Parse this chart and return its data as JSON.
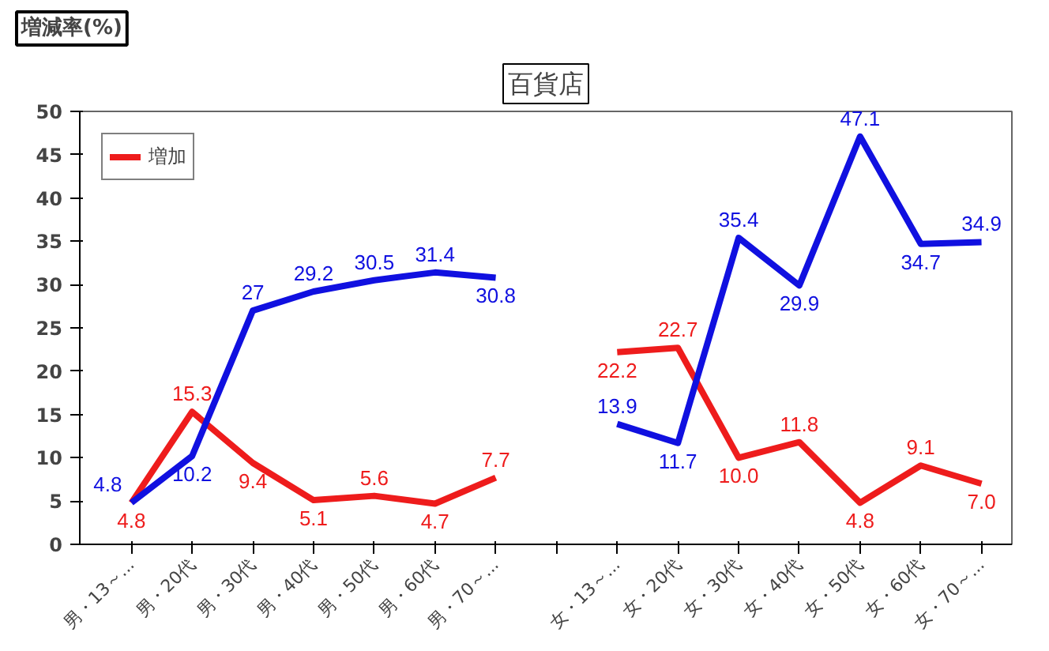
{
  "chart_data": {
    "type": "line",
    "title": "百貨店",
    "ylabel": "増減率(%)",
    "categories": [
      "男・13～...",
      "男・20代",
      "男・30代",
      "男・40代",
      "男・50代",
      "男・60代",
      "男・70～...",
      null,
      "女・13～...",
      "女・20代",
      "女・30代",
      "女・40代",
      "女・50代",
      "女・60代",
      "女・70～..."
    ],
    "series": [
      {
        "name": "増加",
        "color": "#ee1c1c",
        "values": [
          4.8,
          15.3,
          9.4,
          5.1,
          5.6,
          4.7,
          7.7,
          null,
          22.2,
          22.7,
          10.0,
          11.8,
          4.8,
          9.1,
          7.0
        ],
        "value_labels": [
          "4.8",
          "15.3",
          "9.4",
          "5.1",
          "5.6",
          "4.7",
          "7.7",
          null,
          "22.2",
          "22.7",
          "10.0",
          "11.8",
          "4.8",
          "9.1",
          "7.0"
        ]
      },
      {
        "color": "#1010e0",
        "values": [
          4.8,
          10.2,
          27,
          29.2,
          30.5,
          31.4,
          30.8,
          null,
          13.9,
          11.7,
          35.4,
          29.9,
          47.1,
          34.7,
          34.9
        ],
        "value_labels": [
          "4.8",
          "10.2",
          "27",
          "29.2",
          "30.5",
          "31.4",
          "30.8",
          null,
          "13.9",
          "11.7",
          "35.4",
          "29.9",
          "47.1",
          "34.7",
          "34.9"
        ]
      }
    ],
    "ylim": [
      0,
      50
    ],
    "yticks": [
      0,
      5,
      10,
      15,
      20,
      25,
      30,
      35,
      40,
      45,
      50
    ],
    "grid": false,
    "legend": "top left",
    "marker": "none",
    "line_style": "solid"
  }
}
